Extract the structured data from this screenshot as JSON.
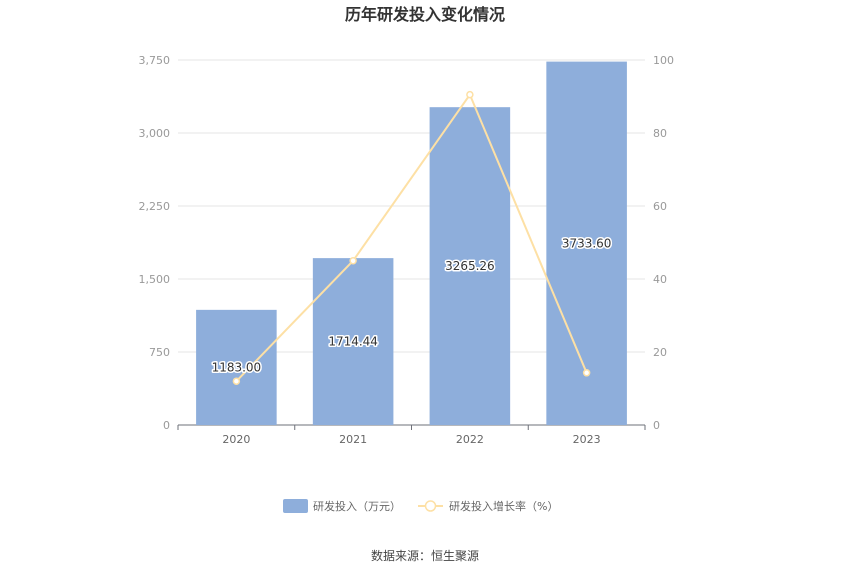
{
  "chart_data": {
    "type": "bar",
    "title": "历年研发投入变化情况",
    "categories": [
      "2020",
      "2021",
      "2022",
      "2023"
    ],
    "series": [
      {
        "name": "研发投入（万元）",
        "type": "bar",
        "axis": "left",
        "values": [
          1183.0,
          1714.44,
          3265.26,
          3733.6
        ],
        "labels": [
          "1183.00",
          "1714.44",
          "3265.26",
          "3733.60"
        ],
        "color": "#8eaedb"
      },
      {
        "name": "研发投入增长率（%）",
        "type": "line",
        "axis": "right",
        "values": [
          12,
          45,
          90.5,
          14.3
        ],
        "color": "#fde0a5"
      }
    ],
    "y_left": {
      "min": 0,
      "max": 3750,
      "ticks": [
        "0",
        "750",
        "1,500",
        "2,250",
        "3,000",
        "3,750"
      ],
      "tick_values": [
        0,
        750,
        1500,
        2250,
        3000,
        3750
      ]
    },
    "y_right": {
      "min": 0,
      "max": 100,
      "ticks": [
        "0",
        "20",
        "40",
        "60",
        "80",
        "100"
      ],
      "tick_values": [
        0,
        20,
        40,
        60,
        80,
        100
      ]
    },
    "grid": true,
    "legend": "bottom-center",
    "source": "数据来源：恒生聚源"
  }
}
